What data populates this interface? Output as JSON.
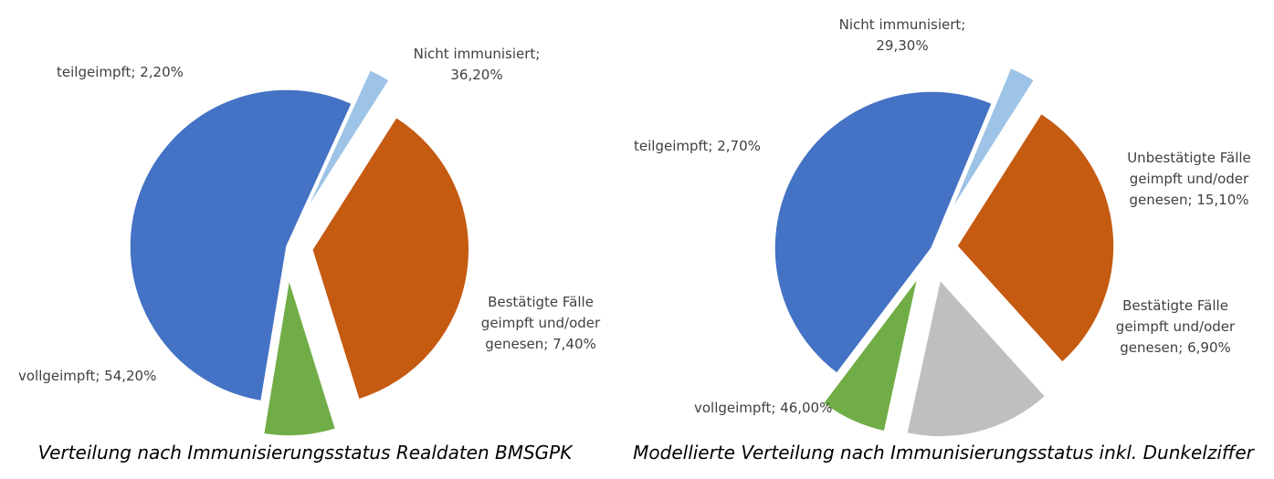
{
  "chart_data": [
    {
      "type": "pie",
      "caption": "Verteilung nach Immunisierungsstatus Realdaten BMSGPK",
      "slices": [
        {
          "name": "Nicht immunisiert",
          "value": 36.2,
          "label_lines": [
            "Nicht immunisiert;",
            "36,20%"
          ],
          "color": "#C55A11"
        },
        {
          "name": "Bestätigte Fälle geimpft und/oder genesen",
          "value": 7.4,
          "label_lines": [
            "Bestätigte Fälle",
            "geimpft und/oder",
            "genesen; 7,40%"
          ],
          "color": "#70AD47"
        },
        {
          "name": "vollgeimpft",
          "value": 54.2,
          "label_lines": [
            "vollgeimpft; 54,20%"
          ],
          "color": "#4472C4"
        },
        {
          "name": "teilgeimpft",
          "value": 2.2,
          "label_lines": [
            "teilgeimpft; 2,20%"
          ],
          "color": "#9DC3E6"
        }
      ]
    },
    {
      "type": "pie",
      "caption": "Modellierte Verteilung nach Immunisierungsstatus inkl. Dunkelziffer",
      "slices": [
        {
          "name": "Nicht immunisiert",
          "value": 29.3,
          "label_lines": [
            "Nicht immunisiert;",
            "29,30%"
          ],
          "color": "#C55A11"
        },
        {
          "name": "Unbestätigte Fälle geimpft und/oder genesen",
          "value": 15.1,
          "label_lines": [
            "Unbestätigte Fälle",
            "geimpft und/oder",
            "genesen; 15,10%"
          ],
          "color": "#BFBFBF"
        },
        {
          "name": "Bestätigte Fälle geimpft und/oder genesen",
          "value": 6.9,
          "label_lines": [
            "Bestätigte Fälle",
            "geimpft und/oder",
            "genesen; 6,90%"
          ],
          "color": "#70AD47"
        },
        {
          "name": "vollgeimpft",
          "value": 46.0,
          "label_lines": [
            "vollgeimpft; 46,00%"
          ],
          "color": "#4472C4"
        },
        {
          "name": "teilgeimpft",
          "value": 2.7,
          "label_lines": [
            "teilgeimpft; 2,70%"
          ],
          "color": "#9DC3E6"
        }
      ]
    }
  ]
}
